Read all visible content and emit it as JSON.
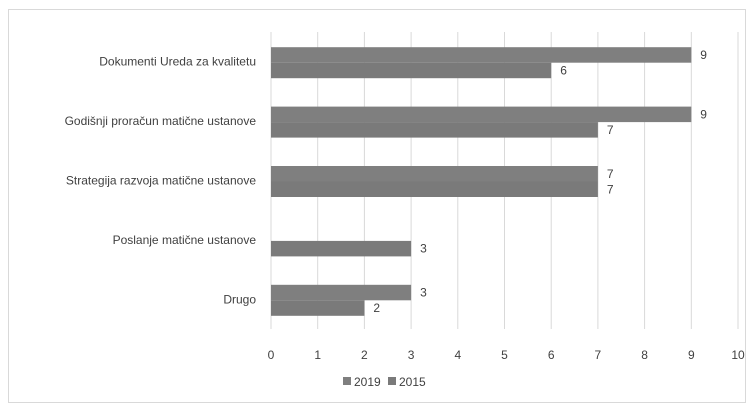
{
  "chart_data": {
    "type": "bar",
    "orientation": "horizontal",
    "categories": [
      "Dokumenti Ureda za kvalitetu",
      "Godišnji proračun matične ustanove",
      "Strategija razvoja matične ustanove",
      "Poslanje matične ustanove",
      "Drugo"
    ],
    "series": [
      {
        "name": "2019",
        "values": [
          9,
          9,
          7,
          0,
          3
        ],
        "color": "#7f7f7f"
      },
      {
        "name": "2015",
        "values": [
          6,
          7,
          7,
          3,
          2
        ],
        "color": "#7a7a7a"
      }
    ],
    "data_labels": [
      [
        "9",
        "9",
        "7",
        "",
        "3"
      ],
      [
        "6",
        "7",
        "7",
        "3",
        "2"
      ]
    ],
    "xlim": [
      0,
      10
    ],
    "x_ticks": [
      "0",
      "1",
      "2",
      "3",
      "4",
      "5",
      "6",
      "7",
      "8",
      "9",
      "10"
    ],
    "grid": true,
    "legend_position": "bottom"
  }
}
